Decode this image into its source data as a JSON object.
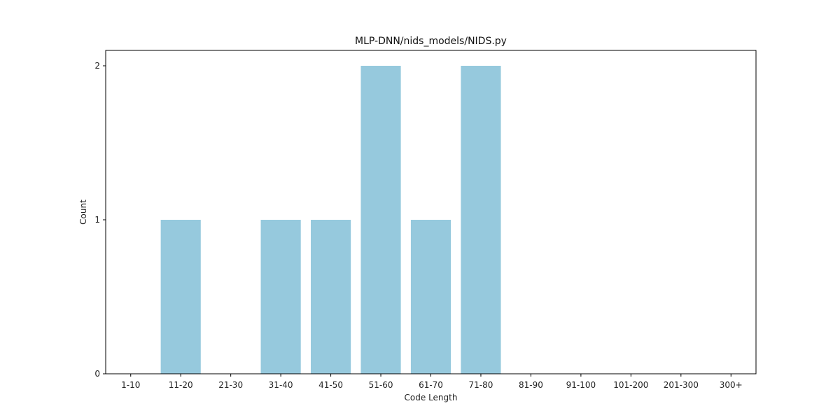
{
  "chart_data": {
    "type": "bar",
    "title": "MLP-DNN/nids_models/NIDS.py",
    "xlabel": "Code Length",
    "ylabel": "Count",
    "categories": [
      "1-10",
      "11-20",
      "21-30",
      "31-40",
      "41-50",
      "51-60",
      "61-70",
      "71-80",
      "81-90",
      "91-100",
      "101-200",
      "201-300",
      "300+"
    ],
    "values": [
      0,
      1,
      0,
      1,
      1,
      2,
      1,
      2,
      0,
      0,
      0,
      0,
      0
    ],
    "ylim": [
      0,
      2.1
    ],
    "yticks": [
      0,
      1,
      2
    ],
    "grid": false,
    "bar_color": "#96c9dd"
  }
}
